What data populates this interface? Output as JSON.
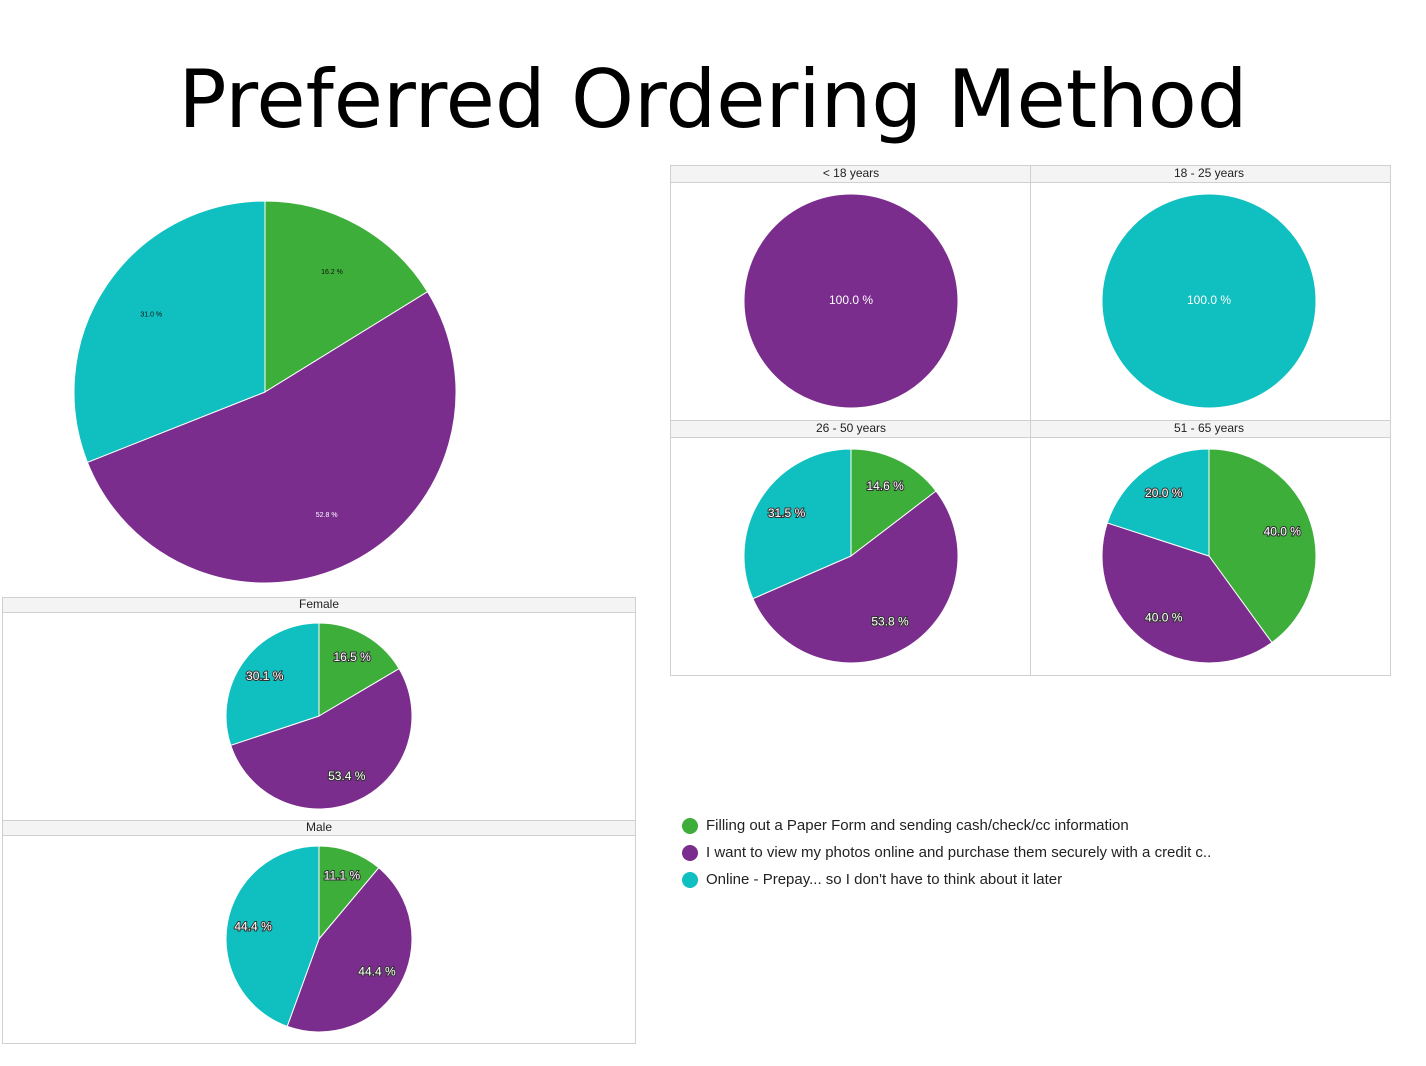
{
  "title": "Preferred Ordering Method",
  "legend": [
    {
      "name": "Filling out a Paper Form and sending cash/check/cc information",
      "color": "#3dae3a"
    },
    {
      "name": "I want to view my photos online and purchase them securely with a credit c..",
      "color": "#7b2d8e"
    },
    {
      "name": "Online - Prepay... so I don't have to think about it later",
      "color": "#10bfbf"
    }
  ],
  "chart_data": [
    {
      "type": "pie",
      "values": [
        16.2,
        52.8,
        31.0
      ],
      "value_labels": [
        "16.2 %",
        "52.8 %",
        "31.0 %"
      ]
    },
    {
      "type": "pie",
      "title": "Female",
      "values": [
        16.5,
        53.4,
        30.1
      ],
      "value_labels": [
        "16.5 %",
        "53.4 %",
        "30.1 %"
      ]
    },
    {
      "type": "pie",
      "title": "Male",
      "values": [
        11.1,
        44.4,
        44.4
      ],
      "value_labels": [
        "11.1 %",
        "44.4 %",
        "44.4 %"
      ]
    },
    {
      "type": "pie",
      "title": "< 18 years",
      "values": [
        0,
        100.0,
        0
      ],
      "value_labels": [
        null,
        "100.0 %",
        null
      ]
    },
    {
      "type": "pie",
      "title": "18 - 25 years",
      "values": [
        0,
        0,
        100.0
      ],
      "value_labels": [
        null,
        null,
        "100.0 %"
      ]
    },
    {
      "type": "pie",
      "title": "26 - 50 years",
      "values": [
        14.6,
        53.8,
        31.5
      ],
      "value_labels": [
        "14.6 %",
        "53.8 %",
        "31.5 %"
      ]
    },
    {
      "type": "pie",
      "title": "51 - 65 years",
      "values": [
        40.0,
        40.0,
        20.0
      ],
      "value_labels": [
        "40.0 %",
        "40.0 %",
        "20.0 %"
      ]
    }
  ]
}
